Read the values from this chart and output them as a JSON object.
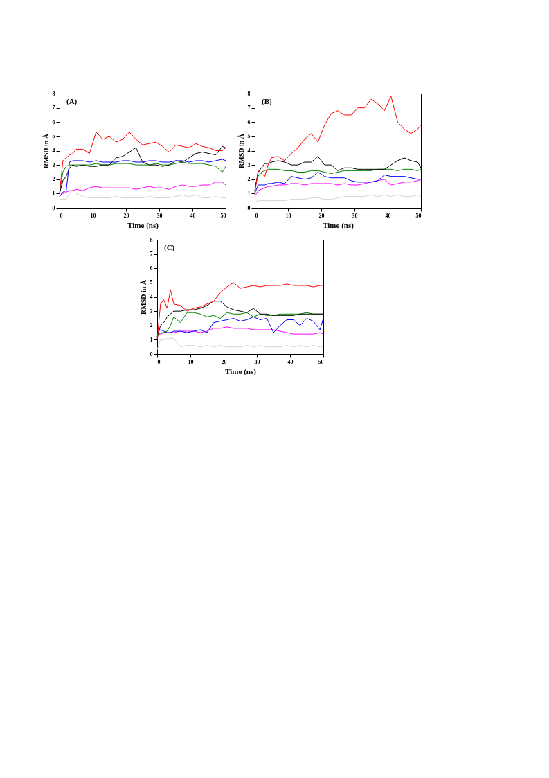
{
  "chart_data": [
    {
      "type": "line",
      "title": "(A)",
      "xlabel": "Time (ns)",
      "ylabel": "RMSD in Å",
      "xlim": [
        0,
        50
      ],
      "xticks": [
        0,
        10,
        20,
        30,
        40,
        50
      ],
      "ylim": [
        0,
        8
      ],
      "yticks": [
        0,
        1,
        2,
        3,
        4,
        5,
        6,
        7,
        8
      ],
      "grid": false,
      "marker": "none",
      "line_style": "solid",
      "x": [
        0,
        1,
        2,
        3,
        4,
        5,
        7,
        9,
        11,
        13,
        15,
        17,
        19,
        21,
        23,
        25,
        27,
        29,
        31,
        33,
        35,
        37,
        39,
        41,
        43,
        45,
        47,
        49,
        50
      ],
      "series": [
        {
          "color": "#d3d3d3",
          "values": [
            0.6,
            0.6,
            0.6,
            1.0,
            1.3,
            1.0,
            0.8,
            0.7,
            0.7,
            0.7,
            0.7,
            0.8,
            0.7,
            0.7,
            0.7,
            0.7,
            0.8,
            0.7,
            0.7,
            0.7,
            0.8,
            0.9,
            0.8,
            0.9,
            0.7,
            0.7,
            0.8,
            0.7,
            0.7
          ]
        },
        {
          "color": "#ff00ff",
          "values": [
            0.8,
            1.0,
            1.1,
            1.2,
            1.2,
            1.3,
            1.2,
            1.4,
            1.5,
            1.4,
            1.4,
            1.4,
            1.4,
            1.4,
            1.3,
            1.4,
            1.5,
            1.4,
            1.4,
            1.3,
            1.5,
            1.6,
            1.5,
            1.5,
            1.6,
            1.6,
            1.8,
            1.8,
            1.6
          ]
        },
        {
          "color": "#008000",
          "values": [
            1.0,
            2.5,
            2.9,
            3.0,
            3.0,
            3.0,
            3.0,
            3.0,
            3.1,
            3.0,
            3.0,
            3.1,
            3.1,
            3.1,
            3.0,
            3.0,
            3.0,
            3.1,
            3.0,
            3.0,
            3.1,
            3.2,
            3.1,
            3.1,
            3.1,
            3.0,
            2.9,
            2.5,
            2.9
          ]
        },
        {
          "color": "#0000ff",
          "values": [
            0.8,
            1.1,
            1.2,
            3.2,
            3.3,
            3.3,
            3.3,
            3.2,
            3.3,
            3.2,
            3.2,
            3.2,
            3.3,
            3.3,
            3.2,
            3.2,
            3.3,
            3.3,
            3.2,
            3.2,
            3.3,
            3.3,
            3.2,
            3.3,
            3.3,
            3.2,
            3.3,
            3.4,
            3.3
          ]
        },
        {
          "color": "#000000",
          "values": [
            1.0,
            1.9,
            2.2,
            2.8,
            3.0,
            2.9,
            3.0,
            2.9,
            2.9,
            3.0,
            3.0,
            3.5,
            3.6,
            3.9,
            4.2,
            3.2,
            3.0,
            3.0,
            2.9,
            3.0,
            3.3,
            3.2,
            3.5,
            3.8,
            3.9,
            3.8,
            3.7,
            4.3,
            4.2
          ]
        },
        {
          "color": "#ff0000",
          "values": [
            1.0,
            3.3,
            3.5,
            3.7,
            3.8,
            4.1,
            4.1,
            3.8,
            5.3,
            4.8,
            5.0,
            4.6,
            4.8,
            5.3,
            4.8,
            4.4,
            4.5,
            4.6,
            4.3,
            3.9,
            4.4,
            4.3,
            4.2,
            4.5,
            4.3,
            4.2,
            4.0,
            4.0,
            4.2
          ]
        }
      ]
    },
    {
      "type": "line",
      "title": "(B)",
      "xlabel": "Time (ns)",
      "ylabel": "RMSD in Å",
      "xlim": [
        0,
        50
      ],
      "xticks": [
        0,
        10,
        20,
        30,
        40,
        50
      ],
      "ylim": [
        0,
        8
      ],
      "yticks": [
        0,
        1,
        2,
        3,
        4,
        5,
        6,
        7,
        8
      ],
      "grid": false,
      "marker": "none",
      "line_style": "solid",
      "x": [
        0,
        1,
        2,
        3,
        4,
        5,
        7,
        9,
        11,
        13,
        15,
        17,
        19,
        21,
        23,
        25,
        27,
        29,
        31,
        33,
        35,
        37,
        39,
        41,
        43,
        45,
        47,
        49,
        50
      ],
      "series": [
        {
          "color": "#d3d3d3",
          "values": [
            0.4,
            0.5,
            0.5,
            0.5,
            0.5,
            0.5,
            0.5,
            0.5,
            0.6,
            0.6,
            0.6,
            0.7,
            0.7,
            0.6,
            0.6,
            0.7,
            0.8,
            0.8,
            0.8,
            0.8,
            0.9,
            0.8,
            0.9,
            0.8,
            0.9,
            0.8,
            0.8,
            0.9,
            0.8
          ]
        },
        {
          "color": "#ff00ff",
          "values": [
            0.8,
            1.2,
            1.3,
            1.4,
            1.5,
            1.5,
            1.6,
            1.6,
            1.7,
            1.7,
            1.6,
            1.7,
            1.7,
            1.7,
            1.7,
            1.6,
            1.7,
            1.6,
            1.6,
            1.7,
            1.8,
            1.9,
            2.0,
            1.6,
            1.7,
            1.8,
            1.8,
            1.9,
            2.0
          ]
        },
        {
          "color": "#0000ff",
          "values": [
            1.0,
            1.6,
            1.6,
            1.6,
            1.7,
            1.7,
            1.8,
            1.7,
            2.2,
            2.1,
            2.0,
            2.1,
            2.5,
            2.2,
            2.1,
            2.1,
            2.1,
            1.9,
            1.8,
            1.8,
            1.8,
            1.9,
            2.3,
            2.2,
            2.2,
            2.2,
            2.1,
            2.0,
            2.0
          ]
        },
        {
          "color": "#008000",
          "values": [
            1.5,
            2.2,
            2.5,
            2.6,
            2.7,
            2.7,
            2.7,
            2.6,
            2.6,
            2.5,
            2.5,
            2.6,
            2.6,
            2.5,
            2.4,
            2.5,
            2.6,
            2.6,
            2.6,
            2.6,
            2.6,
            2.7,
            2.7,
            2.7,
            2.6,
            2.7,
            2.7,
            2.6,
            2.7
          ]
        },
        {
          "color": "#000000",
          "values": [
            1.2,
            2.5,
            2.8,
            3.1,
            3.1,
            3.2,
            3.3,
            3.2,
            3.0,
            3.0,
            3.2,
            3.2,
            3.6,
            3.0,
            3.0,
            2.6,
            2.8,
            2.8,
            2.7,
            2.7,
            2.7,
            2.7,
            2.7,
            3.0,
            3.3,
            3.5,
            3.3,
            3.2,
            2.8
          ]
        },
        {
          "color": "#ff0000",
          "values": [
            1.0,
            2.6,
            2.4,
            2.2,
            3.0,
            3.5,
            3.6,
            3.3,
            3.8,
            4.2,
            4.8,
            5.2,
            4.6,
            5.8,
            6.6,
            6.8,
            6.5,
            6.5,
            7.0,
            7.0,
            7.6,
            7.3,
            6.8,
            7.8,
            6.0,
            5.5,
            5.2,
            5.5,
            5.8
          ]
        }
      ]
    },
    {
      "type": "line",
      "title": "(C)",
      "xlabel": "Time (ns)",
      "ylabel": "RMSD in Å",
      "xlim": [
        0,
        50
      ],
      "xticks": [
        0,
        10,
        20,
        30,
        40,
        50
      ],
      "ylim": [
        0,
        8
      ],
      "yticks": [
        0,
        1,
        2,
        3,
        4,
        5,
        6,
        7,
        8
      ],
      "grid": false,
      "marker": "none",
      "line_style": "solid",
      "x": [
        0,
        1,
        2,
        3,
        4,
        5,
        7,
        9,
        11,
        13,
        15,
        17,
        19,
        21,
        23,
        25,
        27,
        29,
        31,
        33,
        35,
        37,
        39,
        41,
        43,
        45,
        47,
        49,
        50
      ],
      "series": [
        {
          "color": "#d3d3d3",
          "values": [
            0.3,
            1.0,
            1.0,
            1.1,
            1.1,
            1.1,
            0.5,
            0.6,
            0.6,
            0.5,
            0.6,
            0.5,
            0.6,
            0.5,
            0.5,
            0.5,
            0.6,
            0.5,
            0.6,
            0.5,
            0.5,
            0.5,
            0.6,
            0.5,
            0.6,
            0.5,
            0.6,
            0.5,
            0.5
          ]
        },
        {
          "color": "#ff00ff",
          "values": [
            1.2,
            1.4,
            1.5,
            1.5,
            1.5,
            1.5,
            1.6,
            1.6,
            1.6,
            1.5,
            1.6,
            1.8,
            1.8,
            1.9,
            1.8,
            1.8,
            1.8,
            1.7,
            1.7,
            1.7,
            1.7,
            1.6,
            1.5,
            1.4,
            1.4,
            1.4,
            1.4,
            1.5,
            1.4
          ]
        },
        {
          "color": "#0000ff",
          "values": [
            1.5,
            1.7,
            1.6,
            1.5,
            1.5,
            1.6,
            1.6,
            1.5,
            1.6,
            1.7,
            1.5,
            2.2,
            2.3,
            2.4,
            2.5,
            2.3,
            2.4,
            2.6,
            2.4,
            2.5,
            1.5,
            2.0,
            2.4,
            2.4,
            2.0,
            2.5,
            2.3,
            1.7,
            2.5
          ]
        },
        {
          "color": "#008000",
          "values": [
            1.2,
            1.5,
            1.5,
            1.6,
            2.0,
            2.6,
            2.2,
            2.9,
            2.9,
            2.8,
            2.6,
            2.7,
            2.5,
            2.9,
            2.8,
            2.8,
            2.9,
            2.6,
            2.8,
            2.7,
            2.7,
            2.8,
            2.8,
            2.8,
            2.8,
            2.9,
            2.8,
            2.8,
            2.8
          ]
        },
        {
          "color": "#000000",
          "values": [
            1.2,
            2.0,
            2.2,
            2.6,
            2.8,
            3.0,
            3.0,
            3.1,
            3.1,
            3.2,
            3.4,
            3.7,
            3.7,
            3.3,
            3.1,
            3.0,
            2.9,
            3.2,
            2.8,
            2.8,
            2.7,
            2.7,
            2.7,
            2.7,
            2.8,
            2.8,
            2.8,
            2.8,
            2.8
          ]
        },
        {
          "color": "#ff0000",
          "values": [
            1.0,
            3.5,
            3.8,
            3.2,
            4.5,
            3.5,
            3.4,
            3.0,
            3.2,
            3.3,
            3.5,
            3.7,
            4.3,
            4.7,
            5.0,
            4.6,
            4.7,
            4.8,
            4.7,
            4.8,
            4.8,
            4.8,
            4.9,
            4.8,
            4.8,
            4.8,
            4.7,
            4.8,
            4.8
          ]
        }
      ]
    }
  ]
}
